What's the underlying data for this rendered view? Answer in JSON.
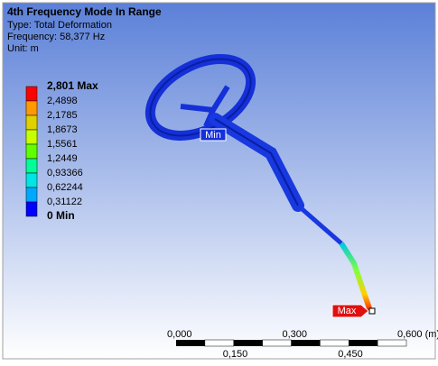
{
  "header": {
    "title": "4th Frequency Mode In Range",
    "type": "Type: Total Deformation",
    "frequency": "Frequency: 58,377 Hz",
    "unit": "Unit: m"
  },
  "legend": {
    "labels": [
      "2,801 Max",
      "2,4898",
      "2,1785",
      "1,8673",
      "1,5561",
      "1,2449",
      "0,93366",
      "0,62244",
      "0,31122",
      "0 Min"
    ],
    "colors": [
      "#ff0000",
      "#ff9900",
      "#e0d000",
      "#c8ff00",
      "#60ff00",
      "#00ff9a",
      "#00e5e5",
      "#00a8ff",
      "#0000ff"
    ]
  },
  "probes": {
    "min": "Min",
    "max": "Max"
  },
  "scale": {
    "top": [
      "0,000",
      "0,300",
      "0,600 (m)"
    ],
    "bottom": [
      "0,150",
      "0,450"
    ]
  }
}
